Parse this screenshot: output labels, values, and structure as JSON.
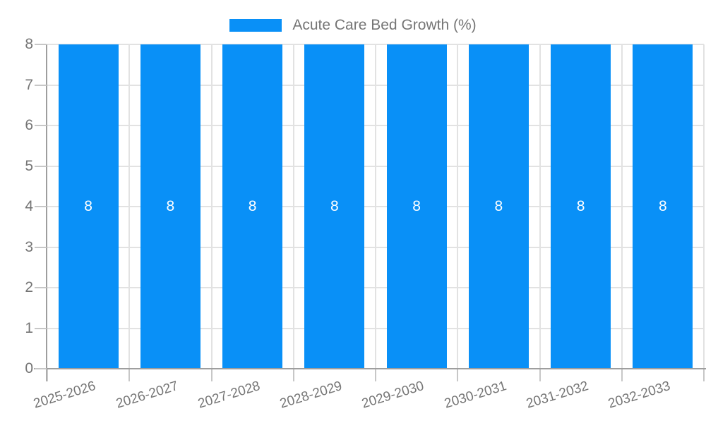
{
  "chart_data": {
    "type": "bar",
    "title": "",
    "categories": [
      "2025-2026",
      "2026-2027",
      "2027-2028",
      "2028-2029",
      "2029-2030",
      "2030-2031",
      "2031-2032",
      "2032-2033"
    ],
    "series": [
      {
        "name": "Acute Care Bed Growth (%)",
        "values": [
          8,
          8,
          8,
          8,
          8,
          8,
          8,
          8
        ],
        "color": "#0990f7"
      }
    ],
    "value_labels": [
      "8",
      "8",
      "8",
      "8",
      "8",
      "8",
      "8",
      "8"
    ],
    "xlabel": "",
    "ylabel": "",
    "ylim": [
      0,
      8
    ],
    "yticks": [
      "0",
      "1",
      "2",
      "3",
      "4",
      "5",
      "6",
      "7",
      "8"
    ],
    "grid": true,
    "legend_position": "top"
  },
  "colors": {
    "bar": "#0990f7",
    "grid": "#e2e2e2",
    "axis_line": "#9e9e9e",
    "tick": "#c7c7c7",
    "axis_text": "#757575",
    "legend_text": "#757575",
    "value_label": "#ffffff",
    "background": "#ffffff"
  }
}
